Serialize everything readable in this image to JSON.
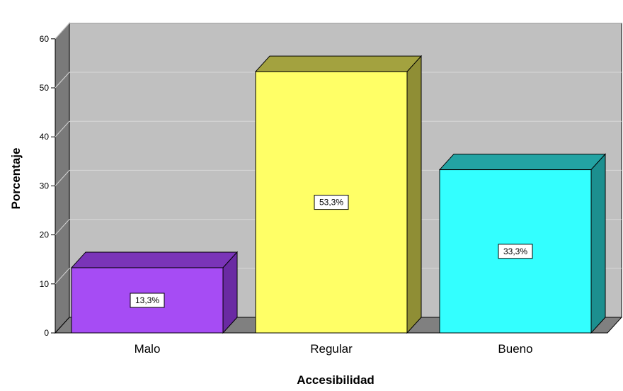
{
  "chart_data": {
    "type": "bar",
    "categories": [
      "Malo",
      "Regular",
      "Bueno"
    ],
    "values": [
      13.3,
      53.3,
      33.3
    ],
    "data_labels": [
      "13,3%",
      "53,3%",
      "33,3%"
    ],
    "xlabel": "Accesibilidad",
    "ylabel": "Porcentaje",
    "ylim": [
      0,
      60
    ],
    "yticks": [
      0,
      10,
      20,
      30,
      40,
      50,
      60
    ],
    "grid": true,
    "style": "3d",
    "colors": {
      "plot_background": "#c0c0c0",
      "side_wall": "#7a7a7a",
      "floor": "#808080",
      "gridline": "#d8d8d8",
      "bars": [
        {
          "front": "#a64cf4",
          "top": "#7a34b8",
          "side": "#6a2aa3"
        },
        {
          "front": "#ffff66",
          "top": "#a3a23f",
          "side": "#8f8e35"
        },
        {
          "front": "#33ffff",
          "top": "#23a3a3",
          "side": "#1c8f8f"
        }
      ]
    }
  }
}
